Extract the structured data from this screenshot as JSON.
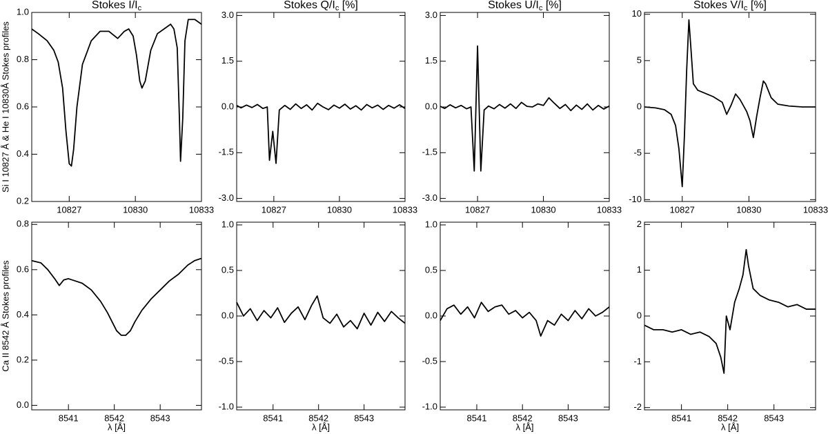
{
  "chart_data": [
    {
      "type": "line",
      "title": [
        "Stokes I/I",
        "c"
      ],
      "ylabel": "Si I 10827 Å & He I 10830Å Stokes profiles",
      "color": "#000000",
      "xlim": [
        10825.3,
        10833
      ],
      "xticks": [
        10827,
        10830,
        10833
      ],
      "ylim": [
        0.2,
        1.0
      ],
      "yticks": [
        0.2,
        0.4,
        0.6,
        0.8,
        {
          "value": 1.0,
          "label": "1.0"
        }
      ],
      "x": [
        10825.3,
        10825.6,
        10826.0,
        10826.3,
        10826.5,
        10826.7,
        10826.85,
        10827.0,
        10827.1,
        10827.2,
        10827.35,
        10827.6,
        10828.0,
        10828.4,
        10828.8,
        10829.2,
        10829.5,
        10829.7,
        10829.9,
        10830.05,
        10830.2,
        10830.3,
        10830.45,
        10830.7,
        10831.0,
        10831.3,
        10831.6,
        10831.75,
        10831.9,
        10832.0,
        10832.05,
        10832.15,
        10832.25,
        10832.4,
        10832.7,
        10833.0
      ],
      "values": [
        0.93,
        0.91,
        0.88,
        0.84,
        0.79,
        0.68,
        0.5,
        0.36,
        0.35,
        0.42,
        0.6,
        0.78,
        0.88,
        0.92,
        0.92,
        0.89,
        0.92,
        0.93,
        0.9,
        0.82,
        0.71,
        0.68,
        0.71,
        0.84,
        0.91,
        0.93,
        0.95,
        0.93,
        0.85,
        0.55,
        0.37,
        0.55,
        0.88,
        0.97,
        0.97,
        0.95
      ]
    },
    {
      "type": "line",
      "title": [
        "Stokes Q/I",
        "c",
        " [%]"
      ],
      "color": "#000000",
      "xlim": [
        10825.3,
        10833
      ],
      "xticks": [
        10827,
        10830,
        10833
      ],
      "ylim": [
        -3.1,
        3.1
      ],
      "yticks": [
        {
          "value": -3.0,
          "label": "-3.0"
        },
        {
          "value": -1.5,
          "label": "-1.5"
        },
        {
          "value": 0.0,
          "label": "0.0"
        },
        {
          "value": 1.5,
          "label": "1.5"
        },
        {
          "value": 3.0,
          "label": "3.0"
        }
      ],
      "x": [
        10825.3,
        10825.5,
        10825.75,
        10826.0,
        10826.25,
        10826.5,
        10826.7,
        10826.8,
        10826.95,
        10827.1,
        10827.25,
        10827.5,
        10827.75,
        10828.0,
        10828.25,
        10828.5,
        10828.75,
        10829.0,
        10829.25,
        10829.5,
        10829.75,
        10830.0,
        10830.25,
        10830.5,
        10830.75,
        10831.0,
        10831.25,
        10831.5,
        10831.75,
        10832.0,
        10832.25,
        10832.5,
        10832.75,
        10833.0
      ],
      "values": [
        0.05,
        -0.03,
        0.06,
        -0.02,
        0.08,
        -0.05,
        0.0,
        -1.75,
        -0.8,
        -1.85,
        -0.1,
        0.05,
        -0.08,
        0.1,
        -0.05,
        0.07,
        -0.1,
        0.12,
        0.0,
        -0.09,
        0.06,
        -0.04,
        0.09,
        -0.07,
        0.04,
        -0.1,
        0.08,
        -0.03,
        0.06,
        -0.08,
        0.05,
        -0.04,
        0.07,
        -0.05
      ]
    },
    {
      "type": "line",
      "title": [
        "Stokes U/I",
        "c",
        " [%]"
      ],
      "color": "#000000",
      "xlim": [
        10825.3,
        10833
      ],
      "xticks": [
        10827,
        10830,
        10833
      ],
      "ylim": [
        -3.1,
        3.1
      ],
      "yticks": [
        {
          "value": -3.0,
          "label": "-3.0"
        },
        {
          "value": -1.5,
          "label": "-1.5"
        },
        {
          "value": 0.0,
          "label": "0.0"
        },
        {
          "value": 1.5,
          "label": "1.5"
        },
        {
          "value": 3.0,
          "label": "3.0"
        }
      ],
      "x": [
        10825.3,
        10825.5,
        10825.75,
        10826.0,
        10826.25,
        10826.5,
        10826.7,
        10826.85,
        10827.0,
        10827.15,
        10827.3,
        10827.5,
        10827.75,
        10828.0,
        10828.25,
        10828.5,
        10828.75,
        10829.0,
        10829.25,
        10829.5,
        10829.75,
        10830.0,
        10830.25,
        10830.5,
        10830.75,
        10831.0,
        10831.25,
        10831.5,
        10831.75,
        10832.0,
        10832.25,
        10832.5,
        10832.75,
        10833.0
      ],
      "values": [
        0.02,
        -0.05,
        0.07,
        -0.03,
        0.05,
        -0.06,
        0.0,
        -2.1,
        2.0,
        -2.1,
        -0.1,
        0.03,
        -0.06,
        0.08,
        -0.04,
        0.1,
        -0.05,
        0.15,
        0.02,
        0.0,
        0.1,
        0.05,
        0.3,
        0.12,
        -0.05,
        0.08,
        -0.12,
        0.06,
        -0.08,
        0.1,
        -0.1,
        0.05,
        -0.07,
        0.03
      ]
    },
    {
      "type": "line",
      "title": [
        "Stokes V/I",
        "c",
        " [%]"
      ],
      "color": "#000000",
      "xlim": [
        10825.3,
        10833
      ],
      "xticks": [
        10827,
        10830,
        10833
      ],
      "ylim": [
        -10.2,
        10.2
      ],
      "yticks": [
        -10,
        -5,
        0,
        5,
        10
      ],
      "x": [
        10825.3,
        10825.8,
        10826.2,
        10826.5,
        10826.7,
        10826.85,
        10827.0,
        10827.1,
        10827.2,
        10827.3,
        10827.4,
        10827.5,
        10827.7,
        10828.0,
        10828.4,
        10828.8,
        10829.0,
        10829.2,
        10829.4,
        10829.6,
        10829.9,
        10830.05,
        10830.2,
        10830.35,
        10830.5,
        10830.65,
        10830.75,
        10831.0,
        10831.3,
        10831.8,
        10832.4,
        10833.0
      ],
      "values": [
        0.0,
        -0.1,
        -0.3,
        -0.8,
        -2.0,
        -4.5,
        -8.6,
        -3.0,
        4.0,
        9.4,
        6.0,
        2.5,
        1.8,
        1.5,
        1.1,
        0.5,
        -0.8,
        0.2,
        1.4,
        0.8,
        -0.5,
        -1.5,
        -3.3,
        -1.0,
        1.0,
        2.8,
        2.5,
        1.0,
        0.3,
        0.1,
        0.0,
        0.0
      ]
    },
    {
      "type": "line",
      "ylabel": "Ca II 8542 Å Stokes profiles",
      "xlabel": "λ [Å]",
      "color": "#000000",
      "xlim": [
        8540.2,
        8543.9
      ],
      "xticks": [
        8541,
        8542,
        8543
      ],
      "ylim": [
        -0.02,
        0.81
      ],
      "yticks": [
        {
          "value": 0.0,
          "label": "0.0"
        },
        0.2,
        0.4,
        0.6,
        0.8
      ],
      "x": [
        8540.2,
        8540.4,
        8540.55,
        8540.7,
        8540.8,
        8540.9,
        8541.0,
        8541.15,
        8541.3,
        8541.5,
        8541.7,
        8541.85,
        8541.95,
        8542.05,
        8542.15,
        8542.25,
        8542.35,
        8542.45,
        8542.6,
        8542.8,
        8543.0,
        8543.2,
        8543.4,
        8543.6,
        8543.75,
        8543.9
      ],
      "values": [
        0.64,
        0.63,
        0.6,
        0.56,
        0.53,
        0.555,
        0.56,
        0.55,
        0.54,
        0.51,
        0.46,
        0.41,
        0.37,
        0.33,
        0.31,
        0.31,
        0.33,
        0.37,
        0.42,
        0.47,
        0.51,
        0.55,
        0.58,
        0.62,
        0.64,
        0.65
      ]
    },
    {
      "type": "line",
      "xlabel": "λ [Å]",
      "color": "#000000",
      "xlim": [
        8540.2,
        8543.9
      ],
      "xticks": [
        8541,
        8542,
        8543
      ],
      "ylim": [
        -1.03,
        1.03
      ],
      "yticks": [
        {
          "value": -1.0,
          "label": "-1.0"
        },
        -0.5,
        {
          "value": 0.0,
          "label": "0.0"
        },
        0.5,
        {
          "value": 1.0,
          "label": "1.0"
        }
      ],
      "x": [
        8540.2,
        8540.35,
        8540.5,
        8540.65,
        8540.8,
        8540.95,
        8541.1,
        8541.25,
        8541.4,
        8541.55,
        8541.7,
        8541.85,
        8541.97,
        8542.1,
        8542.25,
        8542.4,
        8542.55,
        8542.7,
        8542.85,
        8543.0,
        8543.15,
        8543.3,
        8543.45,
        8543.6,
        8543.75,
        8543.9
      ],
      "values": [
        0.15,
        0.0,
        0.08,
        -0.05,
        0.06,
        -0.02,
        0.09,
        -0.07,
        0.03,
        0.1,
        -0.04,
        0.12,
        0.22,
        -0.02,
        -0.08,
        0.02,
        -0.12,
        -0.05,
        -0.14,
        0.03,
        -0.1,
        0.04,
        -0.06,
        0.05,
        -0.02,
        -0.08
      ]
    },
    {
      "type": "line",
      "xlabel": "λ [Å]",
      "color": "#000000",
      "xlim": [
        8540.2,
        8543.9
      ],
      "xticks": [
        8541,
        8542,
        8543
      ],
      "ylim": [
        -1.03,
        1.03
      ],
      "yticks": [
        {
          "value": -1.0,
          "label": "-1.0"
        },
        -0.5,
        {
          "value": 0.0,
          "label": "0.0"
        },
        0.5,
        {
          "value": 1.0,
          "label": "1.0"
        }
      ],
      "x": [
        8540.2,
        8540.35,
        8540.5,
        8540.65,
        8540.8,
        8540.95,
        8541.1,
        8541.25,
        8541.4,
        8541.55,
        8541.7,
        8541.85,
        8542.0,
        8542.15,
        8542.3,
        8542.4,
        8542.55,
        8542.7,
        8542.85,
        8543.0,
        8543.15,
        8543.3,
        8543.45,
        8543.6,
        8543.75,
        8543.9
      ],
      "values": [
        -0.05,
        0.08,
        0.12,
        0.02,
        0.1,
        -0.02,
        0.15,
        0.05,
        0.1,
        0.12,
        0.02,
        0.06,
        -0.02,
        0.04,
        -0.05,
        -0.22,
        -0.05,
        -0.1,
        0.02,
        -0.05,
        0.06,
        -0.03,
        0.08,
        0.0,
        0.04,
        0.1
      ]
    },
    {
      "type": "line",
      "xlabel": "λ [Å]",
      "color": "#000000",
      "xlim": [
        8540.2,
        8543.9
      ],
      "xticks": [
        8541,
        8542,
        8543
      ],
      "ylim": [
        -2.05,
        2.05
      ],
      "yticks": [
        -2,
        -1,
        0,
        1,
        2
      ],
      "x": [
        8540.2,
        8540.4,
        8540.6,
        8540.8,
        8541.0,
        8541.2,
        8541.4,
        8541.6,
        8541.75,
        8541.85,
        8541.92,
        8541.97,
        8542.05,
        8542.15,
        8542.25,
        8542.33,
        8542.4,
        8542.45,
        8542.55,
        8542.7,
        8542.9,
        8543.1,
        8543.3,
        8543.5,
        8543.7,
        8543.9
      ],
      "values": [
        -0.2,
        -0.3,
        -0.3,
        -0.35,
        -0.3,
        -0.4,
        -0.35,
        -0.45,
        -0.6,
        -0.9,
        -1.25,
        0.0,
        -0.3,
        0.3,
        0.6,
        0.9,
        1.45,
        1.1,
        0.6,
        0.45,
        0.35,
        0.3,
        0.2,
        0.25,
        0.15,
        0.15
      ]
    }
  ]
}
